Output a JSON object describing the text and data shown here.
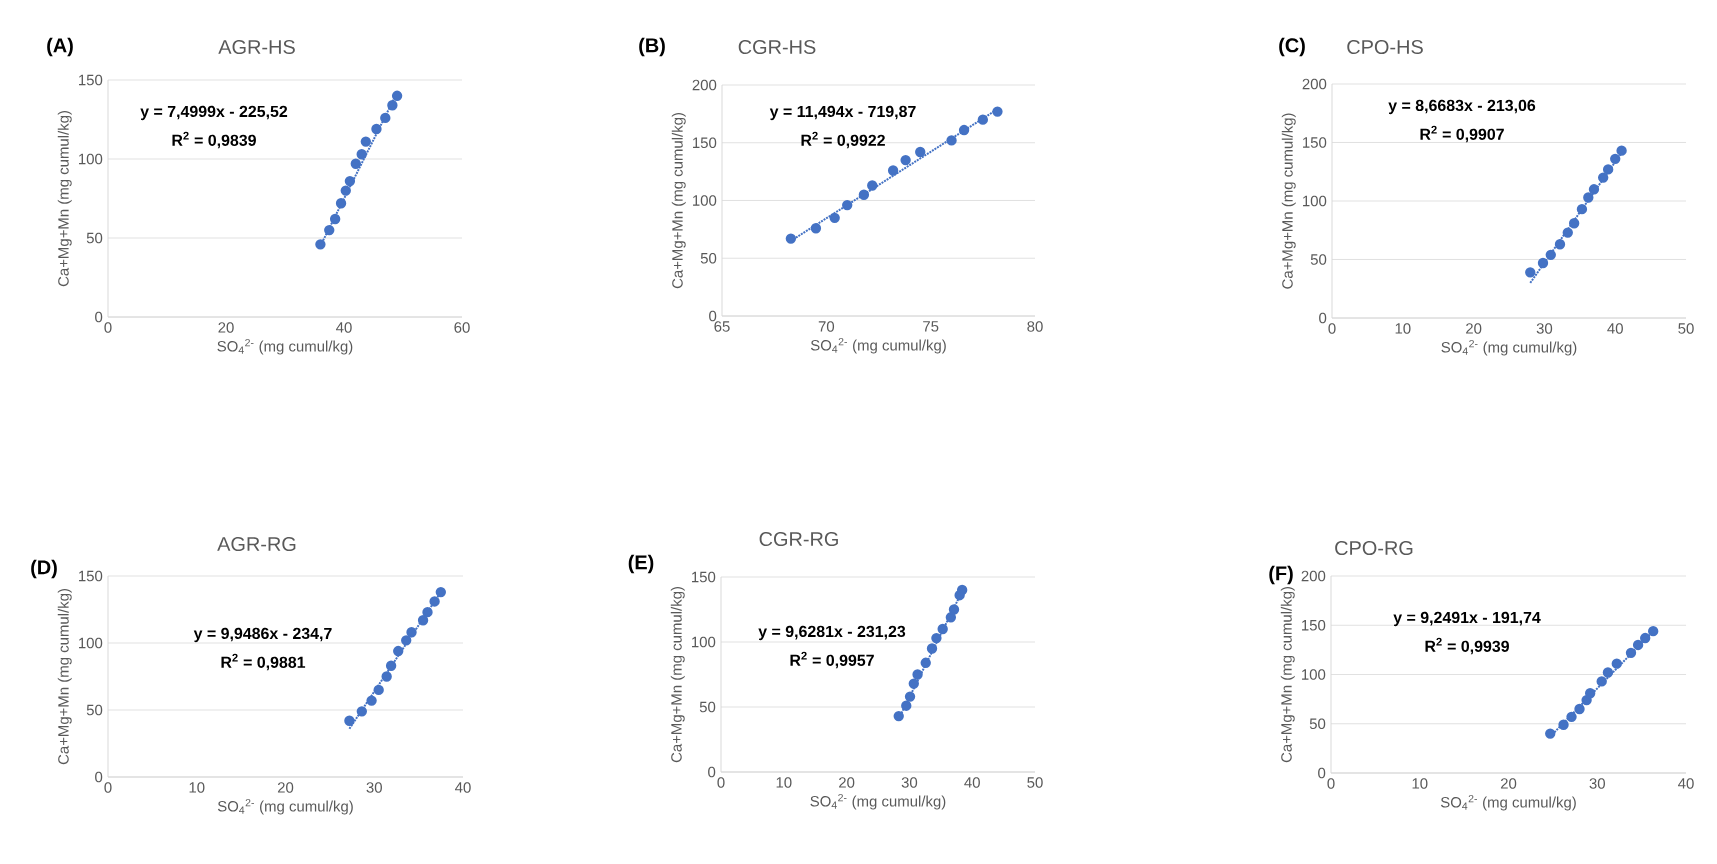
{
  "chart_data": [
    {
      "type": "scatter",
      "title": "AGR-HS",
      "xlabel": "SO$_{4}$$^{2-}$ (mg cumul/kg)",
      "ylabel": "Ca+Mg+Mn (mg cumul/kg)",
      "xlim": [
        0,
        60
      ],
      "xticks": [
        0,
        20,
        40,
        60
      ],
      "ylim": [
        0,
        150
      ],
      "yticks": [
        0,
        50,
        100,
        150
      ],
      "grid": "y",
      "annotations": [
        "(A)",
        "y = 7,4999x - 225,52",
        "R$^{2}$ = 0,9839"
      ],
      "series": [
        {
          "marker": "circle",
          "color": "#4472c4",
          "x": [
            36,
            37.5,
            38.5,
            39.5,
            40.3,
            41,
            42,
            43,
            43.7,
            45.5,
            47,
            48.2,
            49
          ],
          "values": [
            46,
            55,
            62,
            72,
            80,
            86,
            97,
            103,
            111,
            119,
            126,
            134,
            140
          ]
        },
        {
          "type": "line",
          "line_style": "dotted",
          "marker": "none",
          "color": "#4472c4",
          "x": [
            36,
            49
          ],
          "values": [
            45,
            142
          ]
        }
      ]
    },
    {
      "type": "scatter",
      "title": "CGR-HS",
      "xlabel": "SO$_{4}$$^{2-}$ (mg cumul/kg)",
      "ylabel": "Ca+Mg+Mn (mg cumul/kg)",
      "xlim": [
        65,
        80
      ],
      "xticks": [
        65,
        70,
        75,
        80
      ],
      "ylim": [
        0,
        200
      ],
      "yticks": [
        0,
        50,
        100,
        150,
        200
      ],
      "grid": "y",
      "annotations": [
        "(B)",
        "y = 11,494x - 719,87",
        "R$^{2}$ = 0,9922"
      ],
      "series": [
        {
          "marker": "circle",
          "color": "#4472c4",
          "x": [
            68.3,
            69.5,
            70.4,
            71,
            71.8,
            72.2,
            73.2,
            73.8,
            74.5,
            76,
            76.6,
            77.5,
            78.2
          ],
          "values": [
            67,
            76,
            85,
            96,
            105,
            113,
            126,
            135,
            142,
            152,
            161,
            170,
            177
          ]
        },
        {
          "type": "line",
          "line_style": "dotted",
          "marker": "none",
          "color": "#4472c4",
          "x": [
            68.3,
            78.2
          ],
          "values": [
            65,
            179
          ]
        }
      ]
    },
    {
      "type": "scatter",
      "title": "CPO-HS",
      "xlabel": "SO$_{4}$$^{2-}$ (mg cumul/kg)",
      "ylabel": "Ca+Mg+Mn (mg cumul/kg)",
      "xlim": [
        0,
        50
      ],
      "xticks": [
        0,
        10,
        20,
        30,
        40,
        50
      ],
      "ylim": [
        0,
        200
      ],
      "yticks": [
        0,
        50,
        100,
        150,
        200
      ],
      "grid": "y",
      "annotations": [
        "(C)",
        "y = 8,6683x - 213,06",
        "R$^{2}$ = 0,9907"
      ],
      "series": [
        {
          "marker": "circle",
          "color": "#4472c4",
          "x": [
            28,
            29.8,
            30.9,
            32.2,
            33.3,
            34.2,
            35.3,
            36.2,
            37,
            38.3,
            39,
            40,
            40.9
          ],
          "values": [
            39,
            47,
            54,
            63,
            73,
            81,
            93,
            103,
            110,
            120,
            127,
            136,
            143
          ]
        },
        {
          "type": "line",
          "line_style": "dotted",
          "marker": "none",
          "color": "#4472c4",
          "x": [
            28,
            41
          ],
          "values": [
            30,
            142
          ]
        }
      ]
    },
    {
      "type": "scatter",
      "title": "AGR-RG",
      "xlabel": "SO$_{4}$$^{2-}$ (mg cumul/kg)",
      "ylabel": "Ca+Mg+Mn (mg cumul/kg)",
      "xlim": [
        0,
        40
      ],
      "xticks": [
        0,
        10,
        20,
        30,
        40
      ],
      "ylim": [
        0,
        150
      ],
      "yticks": [
        0,
        50,
        100,
        150
      ],
      "grid": "y",
      "annotations": [
        "(D)",
        "y = 9,9486x - 234,7",
        "R$^{2}$ = 0,9881"
      ],
      "series": [
        {
          "marker": "circle",
          "color": "#4472c4",
          "x": [
            27.2,
            28.6,
            29.7,
            30.5,
            31.4,
            31.9,
            32.7,
            33.6,
            34.2,
            35.5,
            36,
            36.8,
            37.5
          ],
          "values": [
            42,
            49,
            57,
            65,
            75,
            83,
            94,
            102,
            108,
            117,
            123,
            131,
            138
          ]
        },
        {
          "type": "line",
          "line_style": "dotted",
          "marker": "none",
          "color": "#4472c4",
          "x": [
            27.2,
            37.5
          ],
          "values": [
            36,
            138
          ]
        }
      ]
    },
    {
      "type": "scatter",
      "title": "CGR-RG",
      "xlabel": "SO$_{4}$$^{2-}$ (mg cumul/kg)",
      "ylabel": "Ca+Mg+Mn (mg cumul/kg)",
      "xlim": [
        0,
        50
      ],
      "xticks": [
        0,
        10,
        20,
        30,
        40,
        50
      ],
      "ylim": [
        0,
        150
      ],
      "yticks": [
        0,
        50,
        100,
        150
      ],
      "grid": "y",
      "annotations": [
        "(E)",
        "y = 9,6281x - 231,23",
        "R$^{2}$ = 0,9957"
      ],
      "series": [
        {
          "marker": "circle",
          "color": "#4472c4",
          "x": [
            28.3,
            29.5,
            30.1,
            30.7,
            31.3,
            32.6,
            33.6,
            34.3,
            35.3,
            36.6,
            37.1,
            38,
            38.4
          ],
          "values": [
            43,
            51,
            58,
            68,
            75,
            84,
            95,
            103,
            110,
            119,
            125,
            136,
            140
          ]
        },
        {
          "type": "line",
          "line_style": "dotted",
          "marker": "none",
          "color": "#4472c4",
          "x": [
            28.3,
            38.4
          ],
          "values": [
            41,
            139
          ]
        }
      ]
    },
    {
      "type": "scatter",
      "title": "CPO-RG",
      "xlabel": "SO$_{4}$$^{2-}$ (mg cumul/kg)",
      "ylabel": "Ca+Mg+Mn (mg cumul/kg)",
      "xlim": [
        0,
        40
      ],
      "xticks": [
        0,
        10,
        20,
        30,
        40
      ],
      "ylim": [
        0,
        200
      ],
      "yticks": [
        0,
        50,
        100,
        150,
        200
      ],
      "grid": "y",
      "annotations": [
        "(F)",
        "y = 9,2491x - 191,74",
        "R$^{2}$ = 0,9939"
      ],
      "series": [
        {
          "marker": "circle",
          "color": "#4472c4",
          "x": [
            24.7,
            26.2,
            27.1,
            28,
            28.8,
            29.2,
            30.5,
            31.2,
            32.2,
            33.8,
            34.6,
            35.4,
            36.3
          ],
          "values": [
            40,
            49,
            57,
            65,
            74,
            81,
            93,
            102,
            111,
            122,
            130,
            137,
            144
          ]
        },
        {
          "type": "line",
          "line_style": "dotted",
          "marker": "none",
          "color": "#4472c4",
          "x": [
            24.7,
            36.3
          ],
          "values": [
            37,
            144
          ]
        }
      ]
    }
  ]
}
